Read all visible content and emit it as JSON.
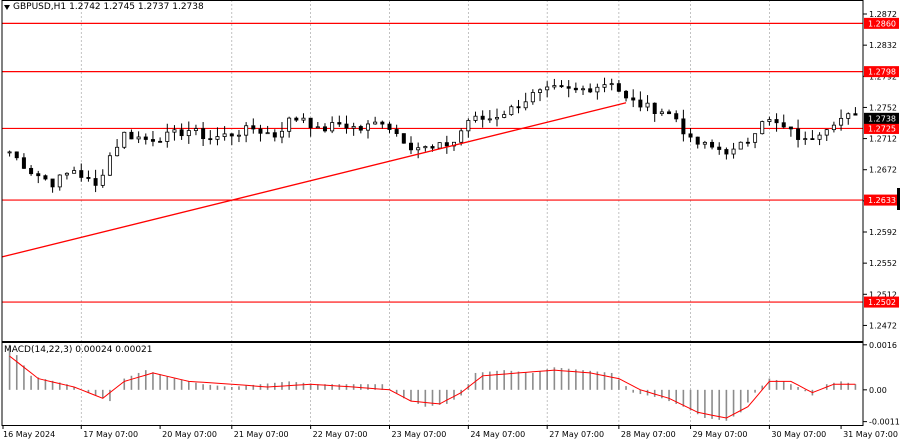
{
  "header": {
    "symbol": "GBPUSD,H1",
    "ohlc": "1.2742 1.2745 1.2737 1.2738"
  },
  "macd_panel": {
    "label": "MACD(14,22,3) 0.00024 0.00021",
    "levels": [
      0.0016,
      0.0,
      -0.00113
    ],
    "level_labels": [
      "0.0016",
      "0.00",
      "-0.00113"
    ]
  },
  "colors": {
    "candle": "#000000",
    "level_line": "#ff0000",
    "trend_line": "#ff0000",
    "signal_line": "#ff0000",
    "histogram": "#8c8c8c",
    "grid": "#a8a8a8",
    "current_price_bg": "#000000",
    "level_label_bg": "#ff0000"
  },
  "chart_data": {
    "type": "candlestick",
    "symbol": "GBPUSD",
    "timeframe": "H1",
    "ylim": [
      1.2452,
      1.289
    ],
    "y_ticks": [
      1.2472,
      1.2512,
      1.2552,
      1.2592,
      1.2632,
      1.2672,
      1.2712,
      1.2752,
      1.2792,
      1.2832,
      1.2872
    ],
    "y_tick_labels": [
      "1.2472",
      "1.2512",
      "1.2552",
      "1.2592",
      "1.2632",
      "1.2672",
      "1.2712",
      "1.2752",
      "1.2792",
      "1.2832",
      "1.2872"
    ],
    "x_labels": [
      "16 May 2024",
      "17 May 07:00",
      "20 May 07:00",
      "21 May 07:00",
      "22 May 07:00",
      "23 May 07:00",
      "24 May 07:00",
      "27 May 07:00",
      "28 May 07:00",
      "29 May 07:00",
      "30 May 07:00",
      "31 May 07:00"
    ],
    "current_price": 1.2738,
    "current_price_label": "1.2738",
    "horizontal_levels": [
      {
        "value": 1.286,
        "label": "1.2860"
      },
      {
        "value": 1.2798,
        "label": "1.2798"
      },
      {
        "value": 1.2725,
        "label": "1.2725"
      },
      {
        "value": 1.2633,
        "label": "1.2633"
      },
      {
        "value": 1.2502,
        "label": "1.2502"
      }
    ],
    "trend_line": {
      "start": [
        0,
        1.256
      ],
      "end": [
        86,
        1.2758
      ]
    },
    "price_path": [
      [
        0,
        1.2695
      ],
      [
        3,
        1.267
      ],
      [
        6,
        1.2655
      ],
      [
        9,
        1.2672
      ],
      [
        12,
        1.265
      ],
      [
        14,
        1.269
      ],
      [
        16,
        1.2718
      ],
      [
        19,
        1.2711
      ],
      [
        22,
        1.2715
      ],
      [
        25,
        1.2723
      ],
      [
        28,
        1.2712
      ],
      [
        31,
        1.2718
      ],
      [
        34,
        1.2725
      ],
      [
        37,
        1.2716
      ],
      [
        39,
        1.2735
      ],
      [
        41,
        1.274
      ],
      [
        43,
        1.2722
      ],
      [
        46,
        1.2731
      ],
      [
        49,
        1.2724
      ],
      [
        52,
        1.2735
      ],
      [
        54,
        1.2719
      ],
      [
        56,
        1.2703
      ],
      [
        59,
        1.2698
      ],
      [
        62,
        1.2708
      ],
      [
        64,
        1.2736
      ],
      [
        67,
        1.2738
      ],
      [
        70,
        1.275
      ],
      [
        73,
        1.2768
      ],
      [
        76,
        1.2775
      ],
      [
        79,
        1.2773
      ],
      [
        82,
        1.278
      ],
      [
        84,
        1.2786
      ],
      [
        86,
        1.2762
      ],
      [
        89,
        1.2752
      ],
      [
        91,
        1.2748
      ],
      [
        93,
        1.2738
      ],
      [
        95,
        1.2708
      ],
      [
        98,
        1.27
      ],
      [
        101,
        1.2695
      ],
      [
        103,
        1.271
      ],
      [
        105,
        1.2738
      ],
      [
        107,
        1.273
      ],
      [
        109,
        1.272
      ],
      [
        111,
        1.2708
      ],
      [
        113,
        1.2722
      ],
      [
        115,
        1.2735
      ],
      [
        117,
        1.274
      ],
      [
        118,
        1.2738
      ]
    ],
    "macd": {
      "histogram_path": [
        [
          0,
          0.0016
        ],
        [
          3,
          0.0005
        ],
        [
          8,
          0.0002
        ],
        [
          12,
          -0.0002
        ],
        [
          14,
          -0.0004
        ],
        [
          16,
          0.0004
        ],
        [
          19,
          0.0007
        ],
        [
          23,
          0.0004
        ],
        [
          27,
          0.0002
        ],
        [
          31,
          0.0001
        ],
        [
          35,
          0.0002
        ],
        [
          39,
          0.0003
        ],
        [
          43,
          0.0002
        ],
        [
          47,
          0.0002
        ],
        [
          52,
          0.0002
        ],
        [
          55,
          -0.0003
        ],
        [
          58,
          -0.0006
        ],
        [
          61,
          -0.0005
        ],
        [
          63,
          -0.0002
        ],
        [
          65,
          0.0006
        ],
        [
          69,
          0.0007
        ],
        [
          73,
          0.0006
        ],
        [
          76,
          0.0008
        ],
        [
          80,
          0.0007
        ],
        [
          84,
          0.0006
        ],
        [
          87,
          -0.0001
        ],
        [
          91,
          -0.0003
        ],
        [
          94,
          -0.0006
        ],
        [
          97,
          -0.001
        ],
        [
          100,
          -0.0011
        ],
        [
          102,
          -0.0008
        ],
        [
          104,
          -0.0001
        ],
        [
          106,
          0.0004
        ],
        [
          108,
          0.0003
        ],
        [
          110,
          0.0001
        ],
        [
          112,
          -0.0002
        ],
        [
          114,
          0.0002
        ],
        [
          116,
          0.0003
        ],
        [
          118,
          0.0002
        ]
      ],
      "signal_path": [
        [
          0,
          0.0012
        ],
        [
          4,
          0.0004
        ],
        [
          9,
          0.0001
        ],
        [
          13,
          -0.0003
        ],
        [
          16,
          0.0003
        ],
        [
          20,
          0.0006
        ],
        [
          25,
          0.0003
        ],
        [
          31,
          0.0002
        ],
        [
          36,
          0.0001
        ],
        [
          42,
          0.0002
        ],
        [
          48,
          0.0001
        ],
        [
          53,
          0.0
        ],
        [
          56,
          -0.0004
        ],
        [
          60,
          -0.0005
        ],
        [
          63,
          -0.0001
        ],
        [
          66,
          0.0005
        ],
        [
          71,
          0.0006
        ],
        [
          76,
          0.0007
        ],
        [
          81,
          0.0006
        ],
        [
          85,
          0.0004
        ],
        [
          88,
          0.0
        ],
        [
          92,
          -0.0003
        ],
        [
          96,
          -0.0008
        ],
        [
          100,
          -0.001
        ],
        [
          103,
          -0.0006
        ],
        [
          106,
          0.0003
        ],
        [
          109,
          0.0003
        ],
        [
          112,
          -0.0001
        ],
        [
          115,
          0.0002
        ],
        [
          118,
          0.0002
        ]
      ],
      "ylim": [
        -0.00125,
        0.0017
      ]
    }
  }
}
